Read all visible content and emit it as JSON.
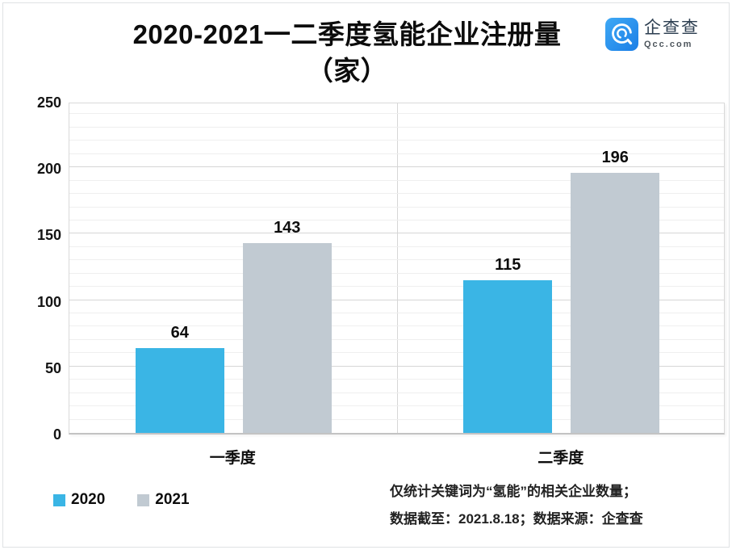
{
  "title": {
    "line1": "2020-2021一二季度氢能企业注册量",
    "line2": "（家）"
  },
  "logo": {
    "name": "企查查",
    "domain": "Qcc.com",
    "brand_color": "#2b96ee"
  },
  "chart_data": {
    "type": "bar",
    "title": "2020-2021一二季度氢能企业注册量（家）",
    "categories": [
      "一季度",
      "二季度"
    ],
    "series": [
      {
        "name": "2020",
        "color": "#3ab5e5",
        "values": [
          64,
          115
        ]
      },
      {
        "name": "2021",
        "color": "#c1cad2",
        "values": [
          143,
          196
        ]
      }
    ],
    "xlabel": "",
    "ylabel": "",
    "ylim": [
      0,
      250
    ],
    "yticks": [
      0,
      50,
      100,
      150,
      200,
      250
    ],
    "minor_grid_step": 10,
    "grid": true,
    "legend_position": "bottom-left",
    "grid_major_color": "#d6d6d6",
    "grid_minor_color": "#efefef"
  },
  "legend": {
    "items": [
      {
        "label": "2020",
        "color": "#3ab5e5"
      },
      {
        "label": "2021",
        "color": "#c1cad2"
      }
    ]
  },
  "footnote": {
    "line1": "仅统计关键词为“氢能”的相关企业数量；",
    "line2": "数据截至：2021.8.18；数据来源：企查查"
  }
}
